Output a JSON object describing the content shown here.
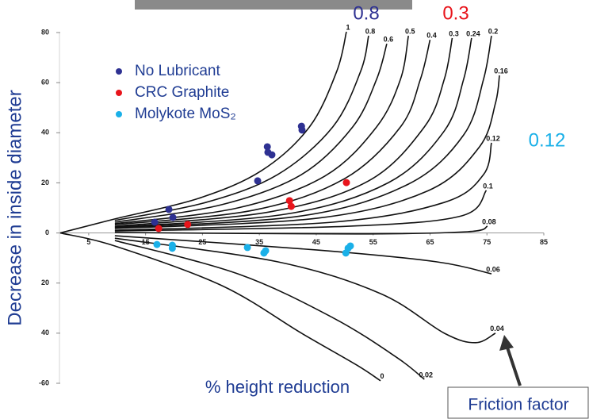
{
  "chart_data": {
    "type": "scatter",
    "xlabel": "% height reduction",
    "ylabel": "Decrease in inside diameter",
    "xlim": [
      0,
      85
    ],
    "ylim": [
      -60,
      80
    ],
    "xticks": [
      5,
      15,
      25,
      35,
      45,
      55,
      65,
      75,
      85
    ],
    "yticks": [
      80,
      60,
      40,
      20,
      0,
      {
        "value": -20,
        "label": "20"
      },
      {
        "value": -40,
        "label": "40"
      },
      {
        "value": -60,
        "label": "-60"
      }
    ],
    "series": [
      {
        "name": "No Lubricant",
        "color": "#2e3192",
        "x": [
          16.6,
          19.1,
          19.8,
          34.7,
          36.4,
          36.5,
          37.2,
          42.4,
          42.5
        ],
        "values": [
          4.3,
          9.4,
          6.2,
          20.8,
          34.4,
          32.2,
          31.2,
          42.6,
          41.1
        ]
      },
      {
        "name": "CRC Graphite",
        "color": "#e8141b",
        "x": [
          17.3,
          22.4,
          40.3,
          40.6,
          50.3
        ],
        "values": [
          1.8,
          3.4,
          12.9,
          10.6,
          20.1
        ]
      },
      {
        "name": "Molykote MoS₂",
        "color": "#1ab0e8",
        "x": [
          17.0,
          19.7,
          19.7,
          32.9,
          35.8,
          36.1,
          50.2,
          50.6,
          51.0
        ],
        "values": [
          -4.6,
          -4.9,
          -6.1,
          -5.8,
          -8.0,
          -7.1,
          -8.0,
          -6.1,
          -5.2
        ]
      }
    ],
    "curves": [
      {
        "label": "1",
        "x": [
          0,
          9.6,
          24.3,
          35.4,
          43.8,
          48.6,
          50.3
        ],
        "values": [
          0,
          5.6,
          13.8,
          24.9,
          42.3,
          64.5,
          80.3
        ]
      },
      {
        "label": "0.8",
        "x": [
          9.6,
          25.6,
          38.2,
          47.9,
          52.8,
          54.2
        ],
        "values": [
          5,
          12.2,
          23.3,
          42.3,
          64.5,
          78.7
        ]
      },
      {
        "label": "0.6",
        "x": [
          9.6,
          28.4,
          42.4,
          51.4,
          55.6,
          57.4
        ],
        "values": [
          4.3,
          11.3,
          23.3,
          42.3,
          61.3,
          75.5
        ]
      },
      {
        "label": "0.5",
        "x": [
          9.6,
          31.2,
          46.5,
          55.6,
          59.8,
          61.2
        ],
        "values": [
          3.7,
          10,
          22.7,
          42.3,
          61.3,
          78.7
        ]
      },
      {
        "label": "0.4",
        "x": [
          9.6,
          34,
          50,
          59.8,
          63.3,
          65
        ],
        "values": [
          3.3,
          9.1,
          21.7,
          42.3,
          61.3,
          77.1
        ]
      },
      {
        "label": "0.3",
        "x": [
          9.6,
          36.8,
          54.2,
          64,
          67.5,
          68.9
        ],
        "values": [
          2.7,
          8.4,
          20.8,
          42.3,
          61.3,
          77.8
        ]
      },
      {
        "label": "0.24",
        "x": [
          9.6,
          39.6,
          57.7,
          67.5,
          70.9,
          72.3
        ],
        "values": [
          2.4,
          7.5,
          20.1,
          40.7,
          61.3,
          77.8
        ]
      },
      {
        "label": "0.2",
        "x": [
          9.6,
          42.4,
          61.2,
          70.9,
          74.4,
          75.8
        ],
        "values": [
          2.1,
          6.8,
          19.5,
          39.1,
          61.3,
          78.7
        ]
      },
      {
        "label": "0.16",
        "x": [
          9.6,
          45.2,
          64.7,
          73.7,
          76.5,
          77.2
        ],
        "values": [
          1.8,
          5.9,
          16.9,
          34.4,
          51.8,
          62.9
        ]
      },
      {
        "label": "0.12",
        "x": [
          9.6,
          47.9,
          67.5,
          74.4,
          75.8
        ],
        "values": [
          1.1,
          4.3,
          12.2,
          23.3,
          36
        ]
      },
      {
        "label": "0.1",
        "x": [
          9.6,
          50.7,
          70.5,
          74.9
        ],
        "values": [
          0.8,
          2.7,
          6.8,
          17
        ]
      },
      {
        "label": "0.08",
        "x": [
          9.6,
          52.1,
          71.6,
          75.1
        ],
        "values": [
          0.2,
          -0.4,
          0.5,
          2.7
        ]
      },
      {
        "label": "0.06",
        "x": [
          9.6,
          45.2,
          66.1,
          75.8
        ],
        "values": [
          -1.1,
          -6.8,
          -11.5,
          -16.3
        ]
      },
      {
        "label": "0.04",
        "x": [
          9.6,
          38.2,
          56.3,
          67.5,
          73,
          76.5
        ],
        "values": [
          -2.1,
          -11.5,
          -24.2,
          -40,
          -43.8,
          -40
        ]
      },
      {
        "label": "0.02",
        "x": [
          9.6,
          31.2,
          47.9,
          59.1,
          64
        ],
        "values": [
          -3,
          -16.3,
          -33.8,
          -49.6,
          -58.4
        ]
      },
      {
        "label": "0",
        "x": [
          0,
          9.6,
          28.4,
          42.4,
          52.1,
          56.3
        ],
        "values": [
          0,
          -5.2,
          -21,
          -40,
          -52.7,
          -59
        ]
      }
    ],
    "annotations": [
      {
        "text": "0.8",
        "color": "#2e3192"
      },
      {
        "text": "0.3",
        "color": "#e8141b"
      },
      {
        "text": "0.12",
        "color": "#1ab0e8"
      }
    ],
    "callout": "Friction factor"
  }
}
